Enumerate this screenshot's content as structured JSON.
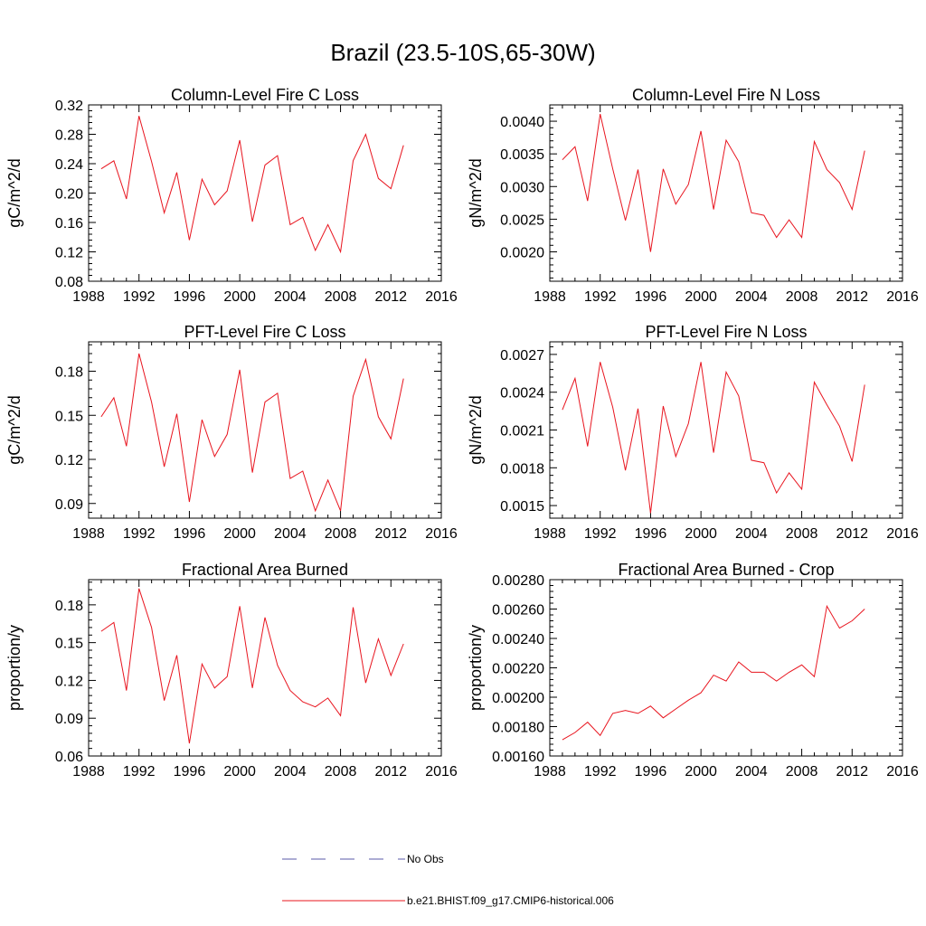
{
  "figure": {
    "title": "Brazil (23.5-10S,65-30W)"
  },
  "legend": {
    "position": "bottom",
    "entries": [
      {
        "label": "No Obs",
        "style": "dashed",
        "color": "#5a5aa8"
      },
      {
        "label": "b.e21.BHIST.f09_g17.CMIP6-historical.006",
        "style": "solid",
        "color": "#e8141e"
      }
    ]
  },
  "chart_data": [
    {
      "type": "line",
      "title": "Column-Level Fire C Loss",
      "ylabel": "gC/m^2/d",
      "xlim": [
        1988,
        2016
      ],
      "ylim": [
        0.08,
        0.32
      ],
      "xticks": [
        1988,
        1992,
        1996,
        2000,
        2004,
        2008,
        2012,
        2016
      ],
      "yticks": [
        0.08,
        0.12,
        0.16,
        0.2,
        0.24,
        0.28,
        0.32
      ],
      "ytick_labels": [
        "0.08",
        "0.12",
        "0.16",
        "0.20",
        "0.24",
        "0.28",
        "0.32"
      ],
      "grid": false,
      "series": [
        {
          "color": "#e8141e",
          "x": [
            1989,
            1990,
            1991,
            1992,
            1993,
            1994,
            1995,
            1996,
            1997,
            1998,
            1999,
            2000,
            2001,
            2002,
            2003,
            2004,
            2005,
            2006,
            2007,
            2008,
            2009,
            2010,
            2011,
            2012,
            2013
          ],
          "values": [
            0.233,
            0.244,
            0.192,
            0.305,
            0.243,
            0.173,
            0.228,
            0.136,
            0.219,
            0.184,
            0.203,
            0.272,
            0.161,
            0.238,
            0.251,
            0.157,
            0.167,
            0.122,
            0.157,
            0.12,
            0.244,
            0.28,
            0.22,
            0.206,
            0.265
          ]
        }
      ]
    },
    {
      "type": "line",
      "title": "Column-Level Fire N Loss",
      "ylabel": "gN/m^2/d",
      "xlim": [
        1988,
        2016
      ],
      "ylim": [
        0.00155,
        0.00425
      ],
      "xticks": [
        1988,
        1992,
        1996,
        2000,
        2004,
        2008,
        2012,
        2016
      ],
      "yticks": [
        0.002,
        0.0025,
        0.003,
        0.0035,
        0.004
      ],
      "ytick_labels": [
        "0.0020",
        "0.0025",
        "0.0030",
        "0.0035",
        "0.0040"
      ],
      "grid": false,
      "series": [
        {
          "color": "#e8141e",
          "x": [
            1989,
            1990,
            1991,
            1992,
            1993,
            1994,
            1995,
            1996,
            1997,
            1998,
            1999,
            2000,
            2001,
            2002,
            2003,
            2004,
            2005,
            2006,
            2007,
            2008,
            2009,
            2010,
            2011,
            2012,
            2013
          ],
          "values": [
            0.00341,
            0.00361,
            0.00278,
            0.00411,
            0.00327,
            0.00248,
            0.00326,
            0.002,
            0.00327,
            0.00273,
            0.00303,
            0.00385,
            0.00265,
            0.00371,
            0.00338,
            0.0026,
            0.00256,
            0.00222,
            0.00249,
            0.00222,
            0.00369,
            0.00326,
            0.00306,
            0.00265,
            0.00355
          ]
        }
      ]
    },
    {
      "type": "line",
      "title": "PFT-Level Fire C Loss",
      "ylabel": "gC/m^2/d",
      "xlim": [
        1988,
        2016
      ],
      "ylim": [
        0.08,
        0.2
      ],
      "xticks": [
        1988,
        1992,
        1996,
        2000,
        2004,
        2008,
        2012,
        2016
      ],
      "yticks": [
        0.09,
        0.12,
        0.15,
        0.18
      ],
      "ytick_labels": [
        "0.09",
        "0.12",
        "0.15",
        "0.18"
      ],
      "grid": false,
      "series": [
        {
          "color": "#e8141e",
          "x": [
            1989,
            1990,
            1991,
            1992,
            1993,
            1994,
            1995,
            1996,
            1997,
            1998,
            1999,
            2000,
            2001,
            2002,
            2003,
            2004,
            2005,
            2006,
            2007,
            2008,
            2009,
            2010,
            2011,
            2012,
            2013
          ],
          "values": [
            0.149,
            0.162,
            0.129,
            0.192,
            0.159,
            0.115,
            0.151,
            0.091,
            0.147,
            0.122,
            0.137,
            0.181,
            0.111,
            0.159,
            0.165,
            0.107,
            0.112,
            0.085,
            0.106,
            0.085,
            0.163,
            0.188,
            0.149,
            0.134,
            0.175
          ]
        }
      ]
    },
    {
      "type": "line",
      "title": "PFT-Level Fire N Loss",
      "ylabel": "gN/m^2/d",
      "xlim": [
        1988,
        2016
      ],
      "ylim": [
        0.0014,
        0.0028
      ],
      "xticks": [
        1988,
        1992,
        1996,
        2000,
        2004,
        2008,
        2012,
        2016
      ],
      "yticks": [
        0.0015,
        0.0018,
        0.0021,
        0.0024,
        0.0027
      ],
      "ytick_labels": [
        "0.0015",
        "0.0018",
        "0.0021",
        "0.0024",
        "0.0027"
      ],
      "grid": false,
      "series": [
        {
          "color": "#e8141e",
          "x": [
            1989,
            1990,
            1991,
            1992,
            1993,
            1994,
            1995,
            1996,
            1997,
            1998,
            1999,
            2000,
            2001,
            2002,
            2003,
            2004,
            2005,
            2006,
            2007,
            2008,
            2009,
            2010,
            2011,
            2012,
            2013
          ],
          "values": [
            0.00226,
            0.00251,
            0.00197,
            0.00264,
            0.00228,
            0.00178,
            0.00227,
            0.00144,
            0.00229,
            0.00189,
            0.00215,
            0.00264,
            0.00192,
            0.00256,
            0.00237,
            0.00186,
            0.00184,
            0.0016,
            0.00176,
            0.00163,
            0.00248,
            0.0023,
            0.00213,
            0.00185,
            0.00246
          ]
        }
      ]
    },
    {
      "type": "line",
      "title": "Fractional Area Burned",
      "ylabel": "proportion/y",
      "xlim": [
        1988,
        2016
      ],
      "ylim": [
        0.06,
        0.2
      ],
      "xticks": [
        1988,
        1992,
        1996,
        2000,
        2004,
        2008,
        2012,
        2016
      ],
      "yticks": [
        0.06,
        0.09,
        0.12,
        0.15,
        0.18
      ],
      "ytick_labels": [
        "0.06",
        "0.09",
        "0.12",
        "0.15",
        "0.18"
      ],
      "grid": false,
      "series": [
        {
          "color": "#e8141e",
          "x": [
            1989,
            1990,
            1991,
            1992,
            1993,
            1994,
            1995,
            1996,
            1997,
            1998,
            1999,
            2000,
            2001,
            2002,
            2003,
            2004,
            2005,
            2006,
            2007,
            2008,
            2009,
            2010,
            2011,
            2012,
            2013
          ],
          "values": [
            0.159,
            0.166,
            0.112,
            0.193,
            0.162,
            0.104,
            0.14,
            0.07,
            0.133,
            0.114,
            0.123,
            0.179,
            0.114,
            0.17,
            0.132,
            0.112,
            0.103,
            0.099,
            0.106,
            0.092,
            0.178,
            0.118,
            0.153,
            0.124,
            0.149
          ]
        }
      ]
    },
    {
      "type": "line",
      "title": "Fractional Area Burned - Crop",
      "ylabel": "proportion/y",
      "xlim": [
        1988,
        2016
      ],
      "ylim": [
        0.0016,
        0.0028
      ],
      "xticks": [
        1988,
        1992,
        1996,
        2000,
        2004,
        2008,
        2012,
        2016
      ],
      "yticks": [
        0.0016,
        0.0018,
        0.002,
        0.0022,
        0.0024,
        0.0026,
        0.0028
      ],
      "ytick_labels": [
        "0.00160",
        "0.00180",
        "0.00200",
        "0.00220",
        "0.00240",
        "0.00260",
        "0.00280"
      ],
      "grid": false,
      "series": [
        {
          "color": "#e8141e",
          "x": [
            1989,
            1990,
            1991,
            1992,
            1993,
            1994,
            1995,
            1996,
            1997,
            1998,
            1999,
            2000,
            2001,
            2002,
            2003,
            2004,
            2005,
            2006,
            2007,
            2008,
            2009,
            2010,
            2011,
            2012,
            2013
          ],
          "values": [
            0.00171,
            0.00176,
            0.00183,
            0.00174,
            0.00189,
            0.00191,
            0.00189,
            0.00194,
            0.00186,
            0.00192,
            0.00198,
            0.00203,
            0.00215,
            0.00211,
            0.00224,
            0.00217,
            0.00217,
            0.00211,
            0.00217,
            0.00222,
            0.00214,
            0.00262,
            0.00247,
            0.00252,
            0.0026
          ]
        }
      ]
    }
  ]
}
